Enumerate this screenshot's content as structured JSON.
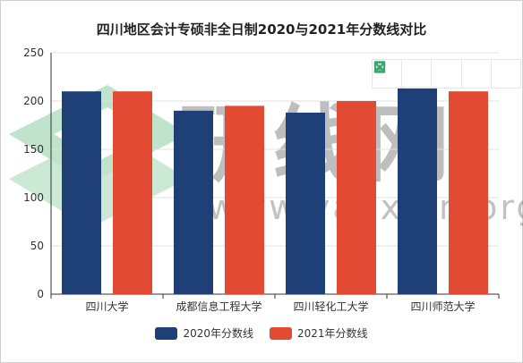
{
  "colors": {
    "series_2020": "#1f3f77",
    "series_2021": "#e24a33",
    "toolbox_icon": "#3aa76d"
  },
  "toolbox": {
    "icons": [
      "data-view-icon",
      "fullscreen-icon",
      "save-image-icon",
      "share-icon",
      "settings-icon"
    ]
  },
  "watermark": {
    "brand_text": "研线网",
    "url_text": "www.yanxian.org"
  },
  "chart_data": {
    "type": "bar",
    "title": "四川地区会计专硕非全日制2020与2021年分数线对比",
    "xlabel": "",
    "ylabel": "",
    "categories": [
      "四川大学",
      "成都信息工程大学",
      "四川轻化工大学",
      "四川师范大学"
    ],
    "series": [
      {
        "name": "2020年分数线",
        "values": [
          210,
          190,
          188,
          215
        ]
      },
      {
        "name": "2021年分数线",
        "values": [
          210,
          195,
          200,
          210
        ]
      }
    ],
    "ylim": [
      0,
      250
    ],
    "yticks": [
      0,
      50,
      100,
      150,
      200,
      250
    ],
    "grid": true,
    "legend_position": "bottom"
  }
}
